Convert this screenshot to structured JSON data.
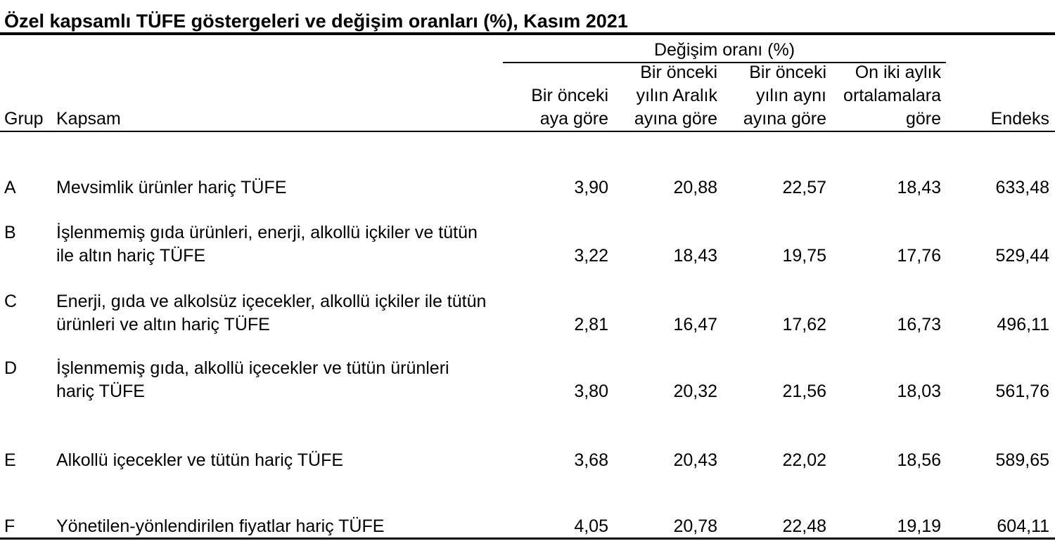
{
  "chart_data": {
    "type": "table",
    "title": "Özel kapsamlı TÜFE göstergeleri ve değişim oranları (%), Kasım 2021",
    "column_group": "Değişim oranı (%)",
    "columns": [
      "Grup",
      "Kapsam",
      "Bir önceki\naya göre",
      "Bir önceki\nyılın Aralık\nayına göre",
      "Bir önceki\nyılın aynı\nayına göre",
      "On iki aylık\nortalamalara\ngöre",
      "Endeks"
    ],
    "rows": [
      [
        "A",
        "Mevsimlik ürünler hariç TÜFE",
        "3,90",
        "20,88",
        "22,57",
        "18,43",
        "633,48"
      ],
      [
        "B",
        "İşlenmemiş gıda ürünleri, enerji, alkollü içkiler ve tütün\nile altın hariç TÜFE",
        "3,22",
        "18,43",
        "19,75",
        "17,76",
        "529,44"
      ],
      [
        "C",
        "Enerji, gıda ve alkolsüz içecekler, alkollü içkiler ile tütün\nürünleri ve altın hariç TÜFE",
        "2,81",
        "16,47",
        "17,62",
        "16,73",
        "496,11"
      ],
      [
        "D",
        "İşlenmemiş gıda, alkollü içecekler ve tütün ürünleri\nhariç TÜFE",
        "3,80",
        "20,32",
        "21,56",
        "18,03",
        "561,76"
      ],
      [
        "E",
        "Alkollü içecekler ve tütün hariç TÜFE",
        "3,68",
        "20,43",
        "22,02",
        "18,56",
        "589,65"
      ],
      [
        "F",
        "Yönetilen-yönlendirilen fiyatlar hariç TÜFE",
        "4,05",
        "20,78",
        "22,48",
        "19,19",
        "604,11"
      ]
    ]
  }
}
